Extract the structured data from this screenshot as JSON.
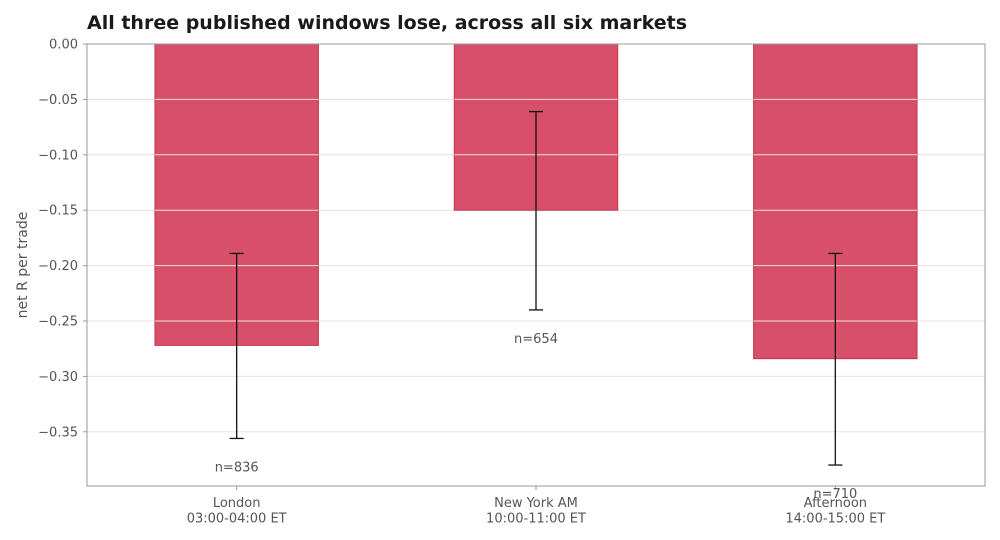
{
  "chart_data": {
    "type": "bar",
    "title": "All three published windows lose, across all six markets",
    "ylabel": "net R per trade",
    "xlabel": "",
    "ylim": [
      -0.4,
      0.0
    ],
    "yticks": [
      0.0,
      -0.05,
      -0.1,
      -0.15,
      -0.2,
      -0.25,
      -0.3,
      -0.35
    ],
    "ytick_labels": [
      "0.00",
      "−0.05",
      "−0.10",
      "−0.15",
      "−0.20",
      "−0.25",
      "−0.30",
      "−0.35"
    ],
    "grid": true,
    "categories": [
      [
        "London",
        "03:00-04:00 ET"
      ],
      [
        "New York AM",
        "10:00-11:00 ET"
      ],
      [
        "Afternoon",
        "14:00-15:00 ET"
      ]
    ],
    "values": [
      -0.272,
      -0.15,
      -0.284
    ],
    "error_low": [
      -0.356,
      -0.24,
      -0.38
    ],
    "error_high": [
      -0.189,
      -0.061,
      -0.189
    ],
    "n_labels": [
      "n=836",
      "n=654",
      "n=710"
    ],
    "colors": {
      "bar": "#d84f6a",
      "bar_edge": "#c8314f",
      "errorbar": "#111111",
      "grid": "#e3e3e3",
      "axis": "#999999"
    }
  }
}
